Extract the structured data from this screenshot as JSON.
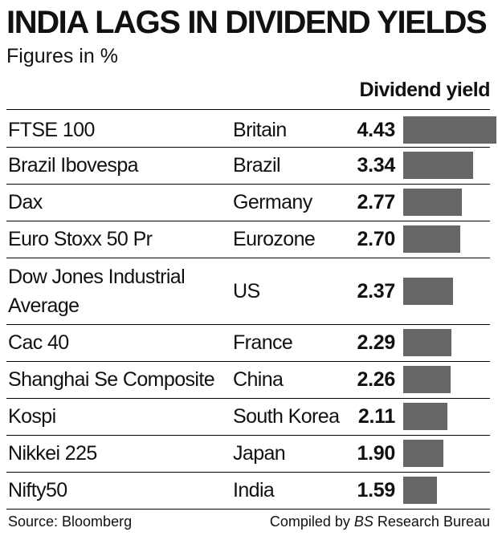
{
  "header": {
    "title": "INDIA LAGS IN DIVIDEND YIELDS",
    "subtitle": "Figures in %",
    "column_label": "Dividend yield"
  },
  "footer": {
    "source": "Source: Bloomberg",
    "credit_prefix": "Compiled by ",
    "credit_em": "BS",
    "credit_suffix": " Research Bureau"
  },
  "colors": {
    "bar": "#666666",
    "text": "#111111",
    "rule": "#000000"
  },
  "chart_data": {
    "type": "bar",
    "orientation": "horizontal",
    "title": "INDIA LAGS IN DIVIDEND YIELDS",
    "subtitle": "Figures in %",
    "value_label": "Dividend yield",
    "xlim": [
      0,
      4.43
    ],
    "categories": [
      "FTSE 100",
      "Brazil Ibovespa",
      "Dax",
      "Euro Stoxx 50 Pr",
      "Dow Jones Industrial Average",
      "Cac 40",
      "Shanghai Se Composite",
      "Kospi",
      "Nikkei 225",
      "Nifty50"
    ],
    "countries": [
      "Britain",
      "Brazil",
      "Germany",
      "Eurozone",
      "US",
      "France",
      "China",
      "South Korea",
      "Japan",
      "India"
    ],
    "values": [
      4.43,
      3.34,
      2.77,
      2.7,
      2.37,
      2.29,
      2.26,
      2.11,
      1.9,
      1.59
    ],
    "value_labels": [
      "4.43",
      "3.34",
      "2.77",
      "2.70",
      "2.37",
      "2.29",
      "2.26",
      "2.11",
      "1.90",
      "1.59"
    ]
  }
}
